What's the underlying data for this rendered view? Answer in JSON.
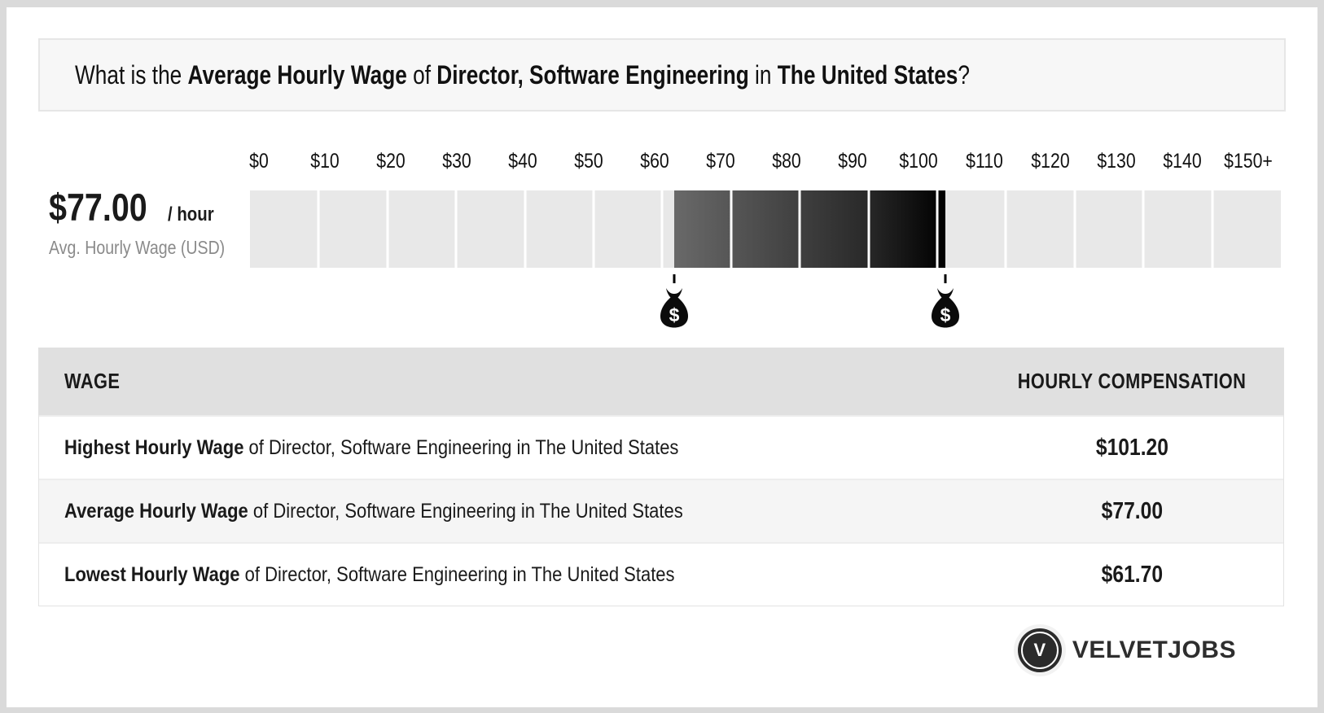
{
  "header": {
    "title_parts": [
      {
        "text": "What is the ",
        "bold": false
      },
      {
        "text": "Average Hourly Wage",
        "bold": true
      },
      {
        "text": " of ",
        "bold": false
      },
      {
        "text": "Director, Software Engineering",
        "bold": true
      },
      {
        "text": " in ",
        "bold": false
      },
      {
        "text": "The United States",
        "bold": true
      },
      {
        "text": "?",
        "bold": false
      }
    ]
  },
  "stat": {
    "value": "$77.00",
    "unit": "/ hour",
    "caption": "Avg. Hourly Wage (USD)"
  },
  "chart_data": {
    "type": "bar",
    "subtype": "highlighted-range-gauge",
    "title": "Average Hourly Wage of Director, Software Engineering in The United States",
    "axis_labels": [
      "$0",
      "$10",
      "$20",
      "$30",
      "$40",
      "$50",
      "$60",
      "$70",
      "$80",
      "$90",
      "$100",
      "$110",
      "$120",
      "$130",
      "$140",
      "$150+"
    ],
    "axis_min": 0,
    "axis_max": 150,
    "segment_count": 15,
    "grid": "segmented",
    "highlight_range": {
      "start": 61.7,
      "end": 101.2
    },
    "markers": [
      {
        "name": "lowest-wage-marker",
        "value": 61.7
      },
      {
        "name": "highest-wage-marker",
        "value": 101.2
      }
    ],
    "values": {
      "lowest": 61.7,
      "average": 77.0,
      "highest": 101.2
    },
    "highlight_gradient": [
      "#696969",
      "#000000"
    ],
    "segment_color": "#e8e8e8"
  },
  "table": {
    "headers": [
      "WAGE",
      "HOURLY COMPENSATION"
    ],
    "rows": [
      {
        "label_bold": "Highest Hourly Wage",
        "label_rest": " of Director, Software Engineering in The United States",
        "value": "$101.20"
      },
      {
        "label_bold": "Average Hourly Wage",
        "label_rest": " of Director, Software Engineering in The United States",
        "value": "$77.00"
      },
      {
        "label_bold": "Lowest Hourly Wage",
        "label_rest": " of Director, Software Engineering in The United States",
        "value": "$61.70"
      }
    ]
  },
  "brand": {
    "monogram": "V",
    "name": "VELVETJOBS"
  },
  "colors": {
    "page_background": "#dadada",
    "card_background": "#ffffff",
    "header_background": "#f7f7f7",
    "table_header_background": "#e0e0e0",
    "alt_row_background": "#f5f5f5",
    "text": "#1a1a1a",
    "caption_gray": "#8a8a8a"
  }
}
